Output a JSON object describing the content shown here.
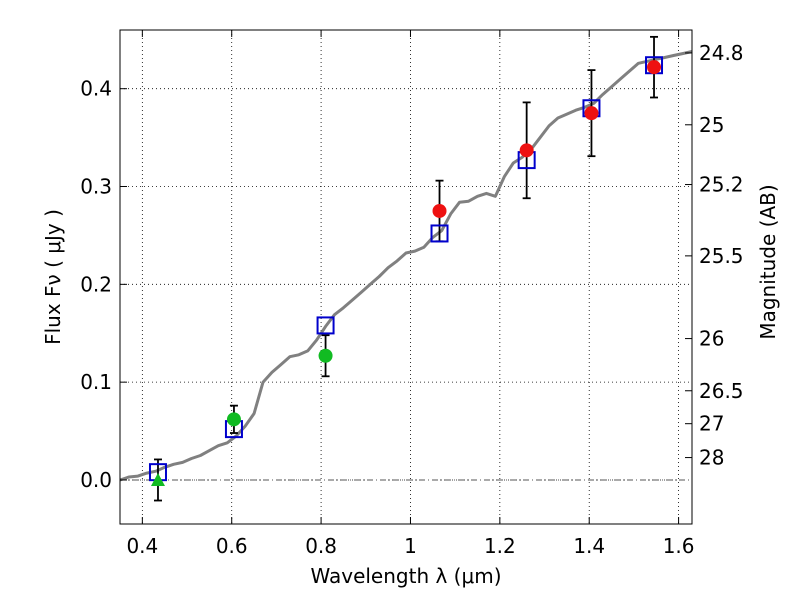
{
  "chart_data": {
    "type": "scatter",
    "title": "",
    "xlabel": "Wavelength  λ (μm)",
    "ylabel": "Flux  Fν  ( μJy )",
    "y2label": "Magnitude (AB)",
    "xlim": [
      0.35,
      1.63
    ],
    "ylim": [
      -0.045,
      0.46
    ],
    "grid": true,
    "x_ticks": [
      0.4,
      0.6,
      0.8,
      1.0,
      1.2,
      1.4,
      1.6
    ],
    "x_tick_labels": [
      "0.4",
      "0.6",
      "0.8",
      "1",
      "1.2",
      "1.4",
      "1.6"
    ],
    "y_ticks": [
      0.0,
      0.1,
      0.2,
      0.3,
      0.4
    ],
    "y_tick_labels": [
      "0.0",
      "0.1",
      "0.2",
      "0.3",
      "0.4"
    ],
    "mag_ticks": [
      24.8,
      25,
      25.2,
      25.5,
      26,
      26.5,
      27,
      28
    ],
    "mag_tick_labels": [
      "24.8",
      "25",
      "25.2",
      "25.5",
      "26",
      "26.5",
      "27",
      "28"
    ],
    "zero_line": 0.0,
    "colors": {
      "model": "#808080",
      "model_photometry": "#0000cc",
      "red_points": "#ee1111",
      "green_points": "#11bb22",
      "errorbar": "#000000"
    },
    "series": [
      {
        "name": "model spectrum",
        "type": "line",
        "x": [
          0.35,
          0.37,
          0.39,
          0.41,
          0.43,
          0.45,
          0.47,
          0.49,
          0.51,
          0.53,
          0.55,
          0.57,
          0.59,
          0.61,
          0.63,
          0.65,
          0.67,
          0.69,
          0.71,
          0.73,
          0.75,
          0.77,
          0.79,
          0.81,
          0.83,
          0.85,
          0.87,
          0.89,
          0.91,
          0.93,
          0.95,
          0.97,
          0.99,
          1.01,
          1.03,
          1.05,
          1.07,
          1.09,
          1.11,
          1.13,
          1.15,
          1.17,
          1.19,
          1.21,
          1.23,
          1.25,
          1.27,
          1.29,
          1.31,
          1.33,
          1.35,
          1.37,
          1.39,
          1.41,
          1.43,
          1.45,
          1.47,
          1.49,
          1.51,
          1.53,
          1.55,
          1.57,
          1.59,
          1.61,
          1.63
        ],
        "y": [
          0.0,
          0.003,
          0.004,
          0.007,
          0.009,
          0.013,
          0.016,
          0.018,
          0.022,
          0.025,
          0.03,
          0.035,
          0.038,
          0.045,
          0.055,
          0.068,
          0.1,
          0.11,
          0.118,
          0.126,
          0.128,
          0.132,
          0.143,
          0.157,
          0.169,
          0.176,
          0.184,
          0.192,
          0.2,
          0.208,
          0.217,
          0.224,
          0.232,
          0.234,
          0.238,
          0.248,
          0.255,
          0.272,
          0.284,
          0.285,
          0.29,
          0.293,
          0.29,
          0.31,
          0.324,
          0.33,
          0.338,
          0.35,
          0.362,
          0.37,
          0.374,
          0.378,
          0.381,
          0.385,
          0.394,
          0.402,
          0.41,
          0.418,
          0.426,
          0.428,
          0.43,
          0.432,
          0.434,
          0.436,
          0.438
        ]
      },
      {
        "name": "model photometry",
        "type": "open-square",
        "x": [
          0.435,
          0.605,
          0.81,
          1.065,
          1.26,
          1.405,
          1.545
        ],
        "y": [
          0.008,
          0.052,
          0.158,
          0.252,
          0.327,
          0.38,
          0.424
        ]
      },
      {
        "name": "observed (red)",
        "type": "circle",
        "x": [
          1.065,
          1.26,
          1.405,
          1.545
        ],
        "y": [
          0.275,
          0.337,
          0.375,
          0.422
        ],
        "err": [
          0.031,
          0.049,
          0.044,
          0.031
        ]
      },
      {
        "name": "observed (green)",
        "type": "circle",
        "x": [
          0.605,
          0.81
        ],
        "y": [
          0.062,
          0.127
        ],
        "err": [
          0.014,
          0.021
        ]
      },
      {
        "name": "upper limit (green)",
        "type": "triangle",
        "x": [
          0.435
        ],
        "y": [
          0.0
        ],
        "err": [
          0.021
        ]
      }
    ]
  }
}
